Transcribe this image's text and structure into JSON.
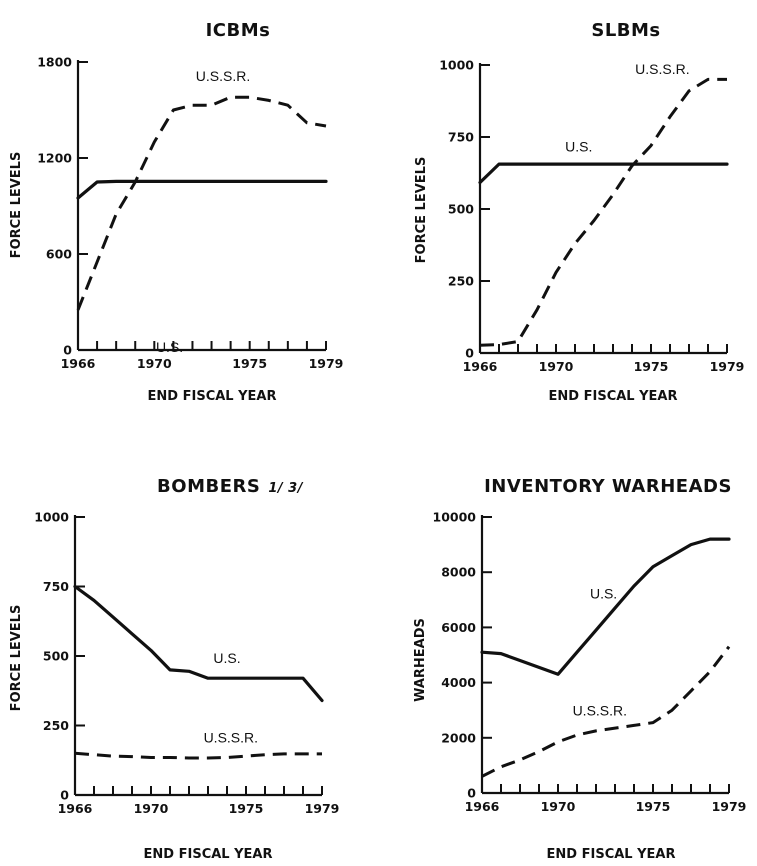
{
  "chart_data": [
    {
      "type": "line",
      "title": "ICBMs",
      "xlabel": "END FISCAL YEAR",
      "ylabel": "FORCE LEVELS",
      "xlim": [
        1966,
        1979
      ],
      "ylim": [
        0,
        1800
      ],
      "x_ticks": [
        1966,
        1970,
        1975,
        1979
      ],
      "y_ticks": [
        0,
        600,
        1200,
        1800
      ],
      "series": [
        {
          "name": "U.S.",
          "style": "solid",
          "x": [
            1966,
            1967,
            1968,
            1979
          ],
          "y": [
            950,
            1050,
            1054,
            1054
          ]
        },
        {
          "name": "U.S.S.R.",
          "style": "dashed",
          "x": [
            1966,
            1967,
            1968,
            1969,
            1970,
            1971,
            1972,
            1973,
            1974,
            1975,
            1976,
            1977,
            1978,
            1979
          ],
          "y": [
            250,
            550,
            850,
            1050,
            1300,
            1500,
            1530,
            1530,
            1580,
            1580,
            1560,
            1530,
            1420,
            1400
          ]
        }
      ]
    },
    {
      "type": "line",
      "title": "SLBMs",
      "xlabel": "END FISCAL YEAR",
      "ylabel": "FORCE LEVELS",
      "xlim": [
        1966,
        1979
      ],
      "ylim": [
        0,
        1000
      ],
      "x_ticks": [
        1966,
        1970,
        1975,
        1979
      ],
      "y_ticks": [
        0,
        250,
        500,
        750,
        1000
      ],
      "series": [
        {
          "name": "U.S.",
          "style": "solid",
          "x": [
            1966,
            1967,
            1979
          ],
          "y": [
            592,
            656,
            656
          ]
        },
        {
          "name": "U.S.S.R.",
          "style": "dashed",
          "x": [
            1966,
            1967,
            1968,
            1969,
            1970,
            1971,
            1972,
            1973,
            1974,
            1975,
            1976,
            1977,
            1978,
            1979
          ],
          "y": [
            27,
            29,
            40,
            150,
            280,
            380,
            460,
            550,
            650,
            720,
            820,
            910,
            950,
            950
          ]
        }
      ]
    },
    {
      "type": "line",
      "title": "BOMBERS",
      "title_footnotes": "1/ 3/",
      "xlabel": "END FISCAL YEAR",
      "ylabel": "FORCE LEVELS",
      "xlim": [
        1966,
        1979
      ],
      "ylim": [
        0,
        1000
      ],
      "x_ticks": [
        1966,
        1970,
        1975,
        1979
      ],
      "y_ticks": [
        0,
        250,
        500,
        750,
        1000
      ],
      "series": [
        {
          "name": "U.S.",
          "style": "solid",
          "x": [
            1966,
            1967,
            1968,
            1969,
            1970,
            1971,
            1972,
            1973,
            1974,
            1975,
            1976,
            1977,
            1978,
            1979
          ],
          "y": [
            750,
            700,
            640,
            580,
            520,
            450,
            445,
            420,
            420,
            420,
            420,
            420,
            420,
            340
          ]
        },
        {
          "name": "U.S.S.R.",
          "style": "dashed",
          "x": [
            1966,
            1967,
            1968,
            1969,
            1970,
            1971,
            1972,
            1973,
            1974,
            1975,
            1976,
            1977,
            1978,
            1979
          ],
          "y": [
            150,
            145,
            140,
            138,
            135,
            135,
            133,
            133,
            135,
            140,
            145,
            148,
            148,
            148
          ]
        }
      ]
    },
    {
      "type": "line",
      "title": "INVENTORY WARHEADS",
      "xlabel": "END FISCAL YEAR",
      "ylabel": "WARHEADS",
      "xlim": [
        1966,
        1979
      ],
      "ylim": [
        0,
        10000
      ],
      "x_ticks": [
        1966,
        1970,
        1975,
        1979
      ],
      "y_ticks": [
        0,
        2000,
        4000,
        6000,
        8000,
        10000
      ],
      "series": [
        {
          "name": "U.S.",
          "style": "solid",
          "x": [
            1966,
            1967,
            1968,
            1969,
            1970,
            1971,
            1972,
            1973,
            1974,
            1975,
            1976,
            1977,
            1978,
            1979
          ],
          "y": [
            5100,
            5050,
            4800,
            4550,
            4300,
            5100,
            5900,
            6700,
            7500,
            8200,
            8600,
            9000,
            9200,
            9200
          ]
        },
        {
          "name": "U.S.S.R.",
          "style": "dashed",
          "x": [
            1966,
            1967,
            1968,
            1969,
            1970,
            1971,
            1972,
            1973,
            1974,
            1975,
            1976,
            1977,
            1978,
            1979
          ],
          "y": [
            600,
            950,
            1200,
            1500,
            1850,
            2100,
            2250,
            2350,
            2450,
            2550,
            3000,
            3700,
            4400,
            5300
          ]
        }
      ]
    }
  ]
}
